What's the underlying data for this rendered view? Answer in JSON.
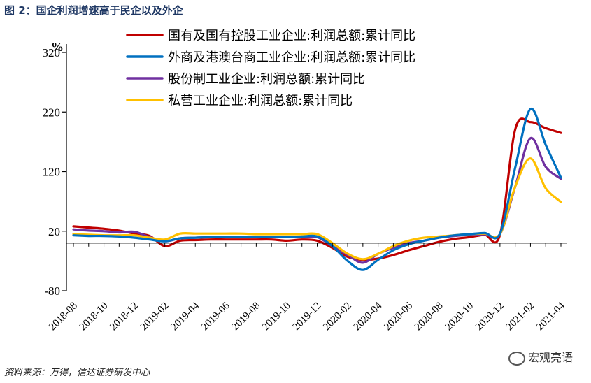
{
  "figure": {
    "title": "图 2：国企利润增速高于民企以及外企",
    "source": "资料来源：万得，信达证券研发中心",
    "watermark": "宏观亮语"
  },
  "chart_data": {
    "type": "line",
    "y_unit": "%",
    "ylim": [
      -80,
      320
    ],
    "yticks": [
      -80,
      20,
      120,
      220,
      320
    ],
    "x": [
      "2018-08",
      "2018-09",
      "2018-10",
      "2018-11",
      "2018-12",
      "2019-01",
      "2019-02",
      "2019-03",
      "2019-04",
      "2019-05",
      "2019-06",
      "2019-07",
      "2019-08",
      "2019-09",
      "2019-10",
      "2019-11",
      "2019-12",
      "2020-01",
      "2020-02",
      "2020-03",
      "2020-04",
      "2020-05",
      "2020-06",
      "2020-07",
      "2020-08",
      "2020-09",
      "2020-10",
      "2020-11",
      "2020-12",
      "2021-01",
      "2021-02",
      "2021-03",
      "2021-04"
    ],
    "xtick_labels": [
      "2018-08",
      "2018-10",
      "2018-12",
      "2019-02",
      "2019-04",
      "2019-06",
      "2019-08",
      "2019-10",
      "2019-12",
      "2020-02",
      "2020-04",
      "2020-06",
      "2020-08",
      "2020-10",
      "2020-12",
      "2021-02",
      "2021-04"
    ],
    "legend_position": "top",
    "grid": false,
    "series": [
      {
        "name": "国有及国有控股工业企业:利润总额:累计同比",
        "color": "#c00000",
        "values": [
          28,
          26,
          24,
          21,
          16,
          12,
          -5,
          4,
          5,
          6,
          6,
          6,
          6,
          6,
          4,
          6,
          4,
          -8,
          -23,
          -28,
          -26,
          -20,
          -12,
          -5,
          2,
          7,
          10,
          14,
          14,
          191,
          203,
          193,
          185
        ]
      },
      {
        "name": "外商及港澳台商工业企业:利润总额:累计同比",
        "color": "#0070c0",
        "values": [
          13,
          12,
          12,
          11,
          9,
          6,
          3,
          8,
          9,
          10,
          10,
          10,
          10,
          10,
          10,
          11,
          11,
          -5,
          -30,
          -45,
          -28,
          -12,
          -2,
          4,
          9,
          13,
          15,
          17,
          16,
          127,
          225,
          165,
          110
        ]
      },
      {
        "name": "股份制工业企业:利润总额:累计同比",
        "color": "#7030a0",
        "values": [
          23,
          21,
          20,
          18,
          19,
          10,
          3,
          8,
          9,
          10,
          10,
          10,
          10,
          10,
          10,
          10,
          10,
          -5,
          -20,
          -33,
          -18,
          -8,
          0,
          4,
          9,
          12,
          14,
          15,
          15,
          95,
          176,
          128,
          108
        ]
      },
      {
        "name": "私营工业企业:利润总额:累计同比",
        "color": "#ffc000",
        "values": [
          15,
          14,
          13,
          13,
          13,
          9,
          6,
          16,
          16,
          16,
          16,
          16,
          15,
          15,
          15,
          15,
          15,
          0,
          -18,
          -27,
          -18,
          -5,
          4,
          9,
          11,
          13,
          15,
          16,
          15,
          95,
          142,
          92,
          69
        ]
      }
    ]
  }
}
